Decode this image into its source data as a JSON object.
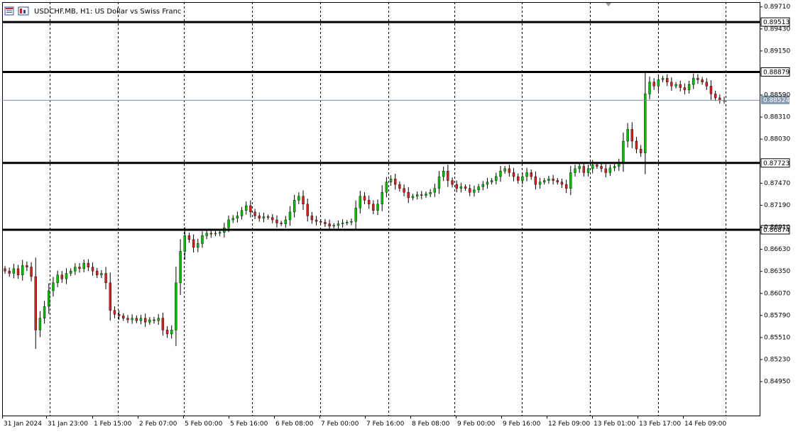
{
  "chart_header": {
    "symbol": "USDCHF.MB",
    "timeframe": "H1",
    "description": "US Dollar vs Swiss Franc",
    "title_text": "USDCHF.MB, H1:  US Dollar vs Swiss Franc"
  },
  "colors": {
    "background": "#ffffff",
    "bull_candle": "#00c000",
    "bear_candle": "#d42020",
    "wick": "#000000",
    "grid": "#000000",
    "hline": "#000000",
    "bid_line": "#7f8fa6",
    "bid_box": "#8a9bb0"
  },
  "chart_data": {
    "type": "candlestick",
    "y_axis": {
      "min": 0.8473,
      "max": 0.8973,
      "tick_labels": [
        "0.89710",
        "0.89430",
        "0.89150",
        "0.88590",
        "0.88310",
        "0.88030",
        "0.87470",
        "0.87190",
        "0.86910",
        "0.86630",
        "0.86350",
        "0.86070",
        "0.85790",
        "0.85510",
        "0.85230",
        "0.84950"
      ]
    },
    "x_axis": {
      "tick_labels": [
        "31 Jan 2024",
        "31 Jan 23:00",
        "1 Feb 15:00",
        "2 Feb 07:00",
        "5 Feb 00:00",
        "5 Feb 16:00",
        "6 Feb 08:00",
        "7 Feb 00:00",
        "7 Feb 16:00",
        "8 Feb 08:00",
        "9 Feb 00:00",
        "9 Feb 16:00",
        "12 Feb 09:00",
        "13 Feb 01:00",
        "13 Feb 17:00",
        "14 Feb 09:00"
      ]
    },
    "horizontal_lines": [
      {
        "label": "0.89513",
        "value": 0.89513
      },
      {
        "label": "0.88879",
        "value": 0.88879
      },
      {
        "label": "0.87723",
        "value": 0.87723
      },
      {
        "label": "0.86874",
        "value": 0.86874
      }
    ],
    "current_price": {
      "label": "0.88524",
      "value": 0.88524
    },
    "close_series": [
      0.8635,
      0.8632,
      0.8638,
      0.863,
      0.8642,
      0.864,
      0.8628,
      0.856,
      0.8575,
      0.859,
      0.861,
      0.862,
      0.863,
      0.8625,
      0.8632,
      0.8635,
      0.864,
      0.8638,
      0.8645,
      0.864,
      0.8635,
      0.863,
      0.8632,
      0.862,
      0.8585,
      0.858,
      0.8578,
      0.8575,
      0.8573,
      0.8575,
      0.8572,
      0.8575,
      0.857,
      0.8573,
      0.8572,
      0.8575,
      0.856,
      0.8555,
      0.856,
      0.862,
      0.866,
      0.868,
      0.8675,
      0.8665,
      0.867,
      0.868,
      0.8683,
      0.8682,
      0.8683,
      0.8684,
      0.869,
      0.87,
      0.8702,
      0.8705,
      0.8712,
      0.8718,
      0.871,
      0.8705,
      0.8702,
      0.8704,
      0.8703,
      0.87,
      0.8696,
      0.8695,
      0.87,
      0.871,
      0.8725,
      0.873,
      0.872,
      0.8705,
      0.87,
      0.8698,
      0.8697,
      0.8695,
      0.8692,
      0.8693,
      0.8695,
      0.8696,
      0.8697,
      0.8698,
      0.8715,
      0.873,
      0.8725,
      0.872,
      0.8712,
      0.872,
      0.8735,
      0.8748,
      0.8752,
      0.8745,
      0.874,
      0.8735,
      0.8728,
      0.873,
      0.8732,
      0.8731,
      0.8733,
      0.8735,
      0.874,
      0.8755,
      0.8762,
      0.875,
      0.8745,
      0.874,
      0.8742,
      0.874,
      0.8735,
      0.8738,
      0.8742,
      0.8745,
      0.8748,
      0.875,
      0.8755,
      0.8762,
      0.8765,
      0.876,
      0.8755,
      0.875,
      0.8755,
      0.876,
      0.8755,
      0.8745,
      0.8748,
      0.875,
      0.8752,
      0.875,
      0.8748,
      0.8745,
      0.874,
      0.876,
      0.8765,
      0.8768,
      0.876,
      0.8765,
      0.877,
      0.8768,
      0.8765,
      0.876,
      0.8766,
      0.8768,
      0.8772,
      0.88,
      0.8815,
      0.88,
      0.879,
      0.8785,
      0.886,
      0.8875,
      0.887,
      0.8878,
      0.888,
      0.8875,
      0.887,
      0.8872,
      0.8868,
      0.8865,
      0.8872,
      0.888,
      0.8878,
      0.8875,
      0.887,
      0.886,
      0.8855,
      0.8852,
      0.8852
    ]
  }
}
